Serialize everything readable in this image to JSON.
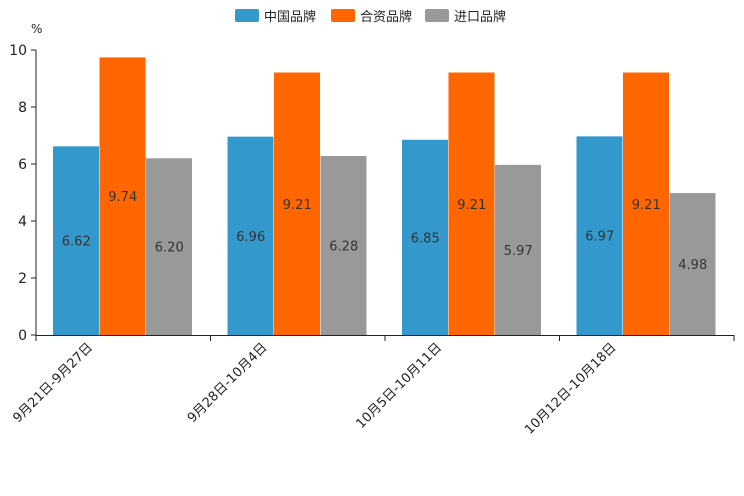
{
  "chart_data": {
    "type": "bar",
    "title": "",
    "xlabel": "",
    "ylabel": "%",
    "ylim": [
      0,
      10
    ],
    "yticks": [
      "0",
      "2",
      "4",
      "6",
      "8",
      "10"
    ],
    "grid": false,
    "legend": "top-center",
    "categories": [
      "9月21日-9月27日",
      "9月28日-10月4日",
      "10月5日-10月11日",
      "10月12日-10月18日"
    ],
    "series": [
      {
        "name": "中国品牌",
        "color": "#3399cc",
        "values": [
          6.62,
          6.96,
          6.85,
          6.97
        ],
        "labels": [
          "6.62",
          "6.96",
          "6.85",
          "6.97"
        ]
      },
      {
        "name": "合资品牌",
        "color": "#ff6600",
        "values": [
          9.74,
          9.21,
          9.21,
          9.21
        ],
        "labels": [
          "9.74",
          "9.21",
          "9.21",
          "9.21"
        ]
      },
      {
        "name": "进口品牌",
        "color": "#999999",
        "values": [
          6.2,
          6.28,
          5.97,
          4.98
        ],
        "labels": [
          "6.20",
          "6.28",
          "5.97",
          "4.98"
        ]
      }
    ]
  }
}
